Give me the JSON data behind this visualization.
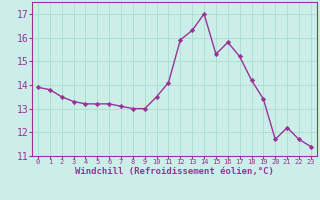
{
  "x": [
    0,
    1,
    2,
    3,
    4,
    5,
    6,
    7,
    8,
    9,
    10,
    11,
    12,
    13,
    14,
    15,
    16,
    17,
    18,
    19,
    20,
    21,
    22,
    23
  ],
  "y": [
    13.9,
    13.8,
    13.5,
    13.3,
    13.2,
    13.2,
    13.2,
    13.1,
    13.0,
    13.0,
    13.5,
    14.1,
    15.9,
    16.3,
    17.0,
    15.3,
    15.8,
    15.2,
    14.2,
    13.4,
    11.7,
    12.2,
    11.7,
    11.4
  ],
  "line_color": "#993399",
  "marker": "D",
  "marker_size": 2.2,
  "bg_color": "#cceee8",
  "grid_color": "#aaddcc",
  "xlabel": "Windchill (Refroidissement éolien,°C)",
  "xlabel_color": "#993399",
  "tick_color": "#993399",
  "ylim": [
    11,
    17.5
  ],
  "xlim": [
    -0.5,
    23.5
  ],
  "yticks": [
    11,
    12,
    13,
    14,
    15,
    16,
    17
  ],
  "xticks": [
    0,
    1,
    2,
    3,
    4,
    5,
    6,
    7,
    8,
    9,
    10,
    11,
    12,
    13,
    14,
    15,
    16,
    17,
    18,
    19,
    20,
    21,
    22,
    23
  ],
  "spine_color": "#993399",
  "line_width": 1.0,
  "ytick_fontsize": 7,
  "xtick_fontsize": 5.0,
  "xlabel_fontsize": 6.5
}
